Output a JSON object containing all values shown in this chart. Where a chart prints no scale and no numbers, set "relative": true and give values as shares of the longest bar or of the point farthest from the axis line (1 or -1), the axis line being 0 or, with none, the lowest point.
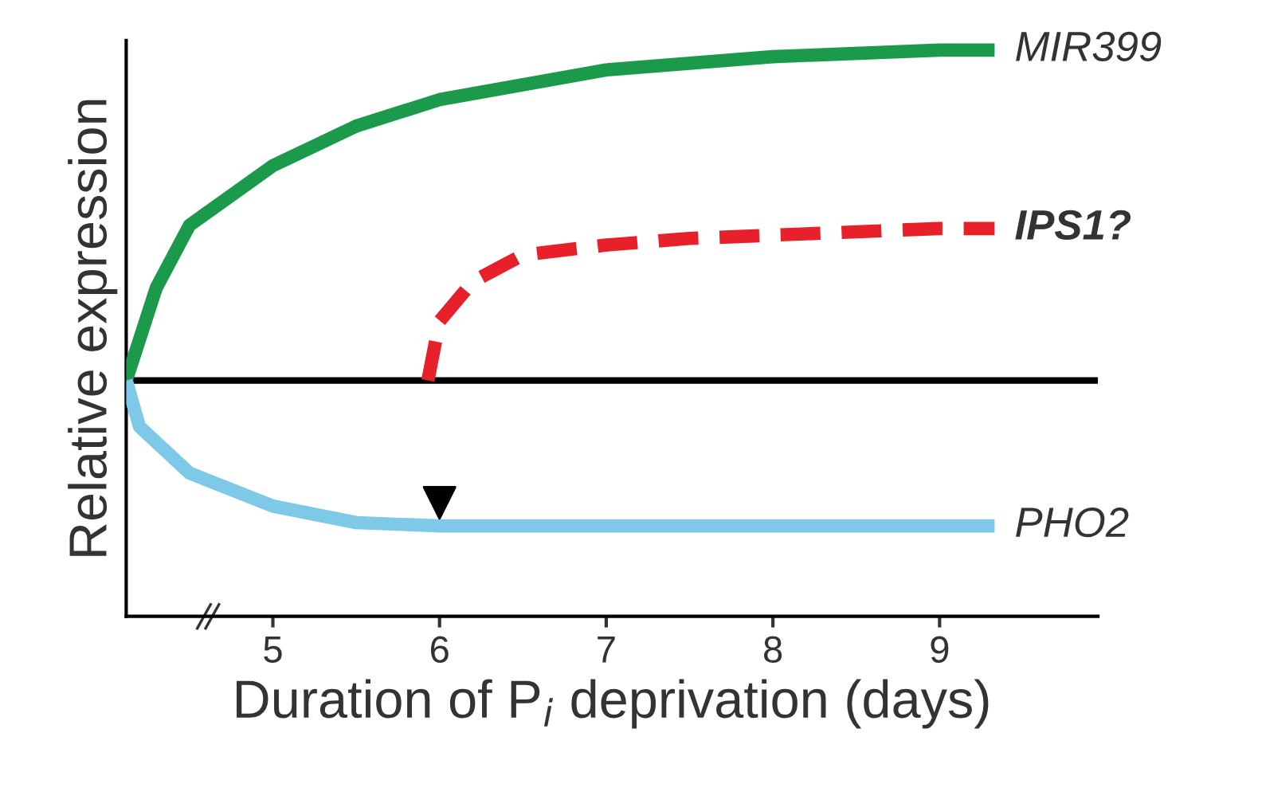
{
  "chart_data": {
    "type": "line",
    "relative": true,
    "xlabel": "Duration of P$_{i}$ deprivation (days)",
    "ylabel": "Relative expression",
    "xlim": [
      4.12,
      9.95
    ],
    "xticks": [
      5,
      6,
      7,
      8,
      9
    ],
    "tick_labels": "x",
    "grid": false,
    "legend": false,
    "marker": "none",
    "ref_lines": [
      {
        "axis": "y",
        "value": 0,
        "color": "#000000"
      }
    ],
    "series": [
      {
        "name": "MIR399",
        "color": "#1a9a4a",
        "line_style": "solid",
        "x": [
          4.12,
          4.3,
          4.5,
          5,
          5.5,
          6,
          7,
          8,
          9,
          9.33
        ],
        "values": [
          0,
          0.28,
          0.47,
          0.65,
          0.77,
          0.85,
          0.94,
          0.98,
          1.0,
          1.0
        ]
      },
      {
        "name": "IPS1?",
        "color": "#e8202a",
        "line_style": "dashed",
        "x": [
          5.93,
          6.0,
          6.2,
          6.5,
          7,
          7.5,
          8,
          9,
          9.33
        ],
        "values": [
          0,
          0.18,
          0.3,
          0.38,
          0.41,
          0.43,
          0.44,
          0.46,
          0.46
        ]
      },
      {
        "name": "PHO2",
        "color": "#7ec8e8",
        "line_style": "solid",
        "x": [
          4.12,
          4.2,
          4.5,
          5,
          5.5,
          6,
          9.33
        ],
        "values": [
          0,
          -0.14,
          -0.28,
          -0.38,
          -0.43,
          -0.44,
          -0.44
        ]
      },
      {
        "type": "scatter",
        "marker": "triangle",
        "color": "#000000",
        "x": [
          6.0
        ],
        "values": [
          -0.37
        ]
      }
    ]
  }
}
